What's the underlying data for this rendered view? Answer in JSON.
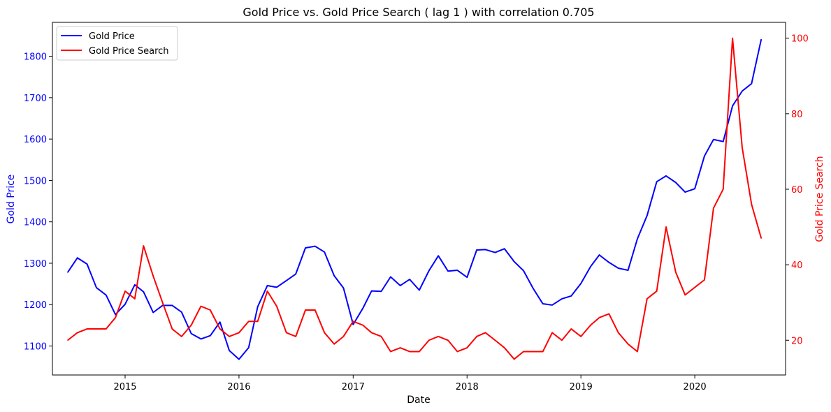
{
  "chart_data": {
    "type": "line",
    "title": "Gold Price vs. Gold Price Search ( lag 1 ) with correlation 0.705",
    "xlabel": "Date",
    "ylabel_left": "Gold Price",
    "ylabel_right": "Gold Price Search",
    "x_ticks": [
      "2015",
      "2016",
      "2017",
      "2018",
      "2019",
      "2020"
    ],
    "y_left_ticks": [
      1100,
      1200,
      1300,
      1400,
      1500,
      1600,
      1700,
      1800
    ],
    "y_right_ticks": [
      20,
      40,
      60,
      80,
      100
    ],
    "xlim": [
      "2014-05-13",
      "2020-10-18"
    ],
    "ylim_left": [
      1030,
      1882
    ],
    "ylim_right": [
      10.8,
      104.2
    ],
    "legend": {
      "position": "top-left",
      "entries": [
        "Gold Price",
        "Gold Price Search"
      ]
    },
    "grid": false,
    "colors": {
      "left": "#0000ff",
      "right": "#ff0000"
    },
    "x": [
      "2014-07",
      "2014-08",
      "2014-09",
      "2014-10",
      "2014-11",
      "2014-12",
      "2015-01",
      "2015-02",
      "2015-03",
      "2015-04",
      "2015-05",
      "2015-06",
      "2015-07",
      "2015-08",
      "2015-09",
      "2015-10",
      "2015-11",
      "2015-12",
      "2016-01",
      "2016-02",
      "2016-03",
      "2016-04",
      "2016-05",
      "2016-06",
      "2016-07",
      "2016-08",
      "2016-09",
      "2016-10",
      "2016-11",
      "2016-12",
      "2017-01",
      "2017-02",
      "2017-03",
      "2017-04",
      "2017-05",
      "2017-06",
      "2017-07",
      "2017-08",
      "2017-09",
      "2017-10",
      "2017-11",
      "2017-12",
      "2018-01",
      "2018-02",
      "2018-03",
      "2018-04",
      "2018-05",
      "2018-06",
      "2018-07",
      "2018-08",
      "2018-09",
      "2018-10",
      "2018-11",
      "2018-12",
      "2019-01",
      "2019-02",
      "2019-03",
      "2019-04",
      "2019-05",
      "2019-06",
      "2019-07",
      "2019-08",
      "2019-09",
      "2019-10",
      "2019-11",
      "2019-12",
      "2020-01",
      "2020-02",
      "2020-03",
      "2020-04",
      "2020-05",
      "2020-06",
      "2020-07",
      "2020-08"
    ],
    "series": [
      {
        "name": "Gold Price",
        "axis": "left",
        "values": [
          1278,
          1313,
          1298,
          1241,
          1223,
          1176,
          1201,
          1248,
          1231,
          1181,
          1198,
          1198,
          1182,
          1130,
          1117,
          1125,
          1158,
          1089,
          1068,
          1096,
          1195,
          1246,
          1242,
          1258,
          1274,
          1337,
          1341,
          1327,
          1270,
          1240,
          1152,
          1191,
          1233,
          1232,
          1267,
          1246,
          1261,
          1235,
          1282,
          1318,
          1281,
          1283,
          1266,
          1332,
          1333,
          1326,
          1335,
          1304,
          1282,
          1239,
          1202,
          1199,
          1214,
          1221,
          1251,
          1292,
          1320,
          1302,
          1288,
          1283,
          1359,
          1415,
          1497,
          1511,
          1495,
          1472,
          1480,
          1559,
          1599,
          1594,
          1680,
          1716,
          1734,
          1841
        ]
      },
      {
        "name": "Gold Price Search",
        "axis": "right",
        "values": [
          20,
          22,
          23,
          23,
          23,
          26,
          33,
          31,
          45,
          37,
          30,
          23,
          21,
          24,
          29,
          28,
          23,
          21,
          22,
          25,
          25,
          33,
          29,
          22,
          21,
          28,
          28,
          22,
          19,
          21,
          25,
          24,
          22,
          21,
          17,
          18,
          17,
          17,
          20,
          21,
          20,
          17,
          18,
          21,
          22,
          20,
          18,
          15,
          17,
          17,
          17,
          22,
          20,
          23,
          21,
          24,
          26,
          27,
          22,
          19,
          17,
          31,
          33,
          50,
          38,
          32,
          34,
          36,
          55,
          60,
          100,
          71,
          56,
          47
        ]
      }
    ]
  }
}
